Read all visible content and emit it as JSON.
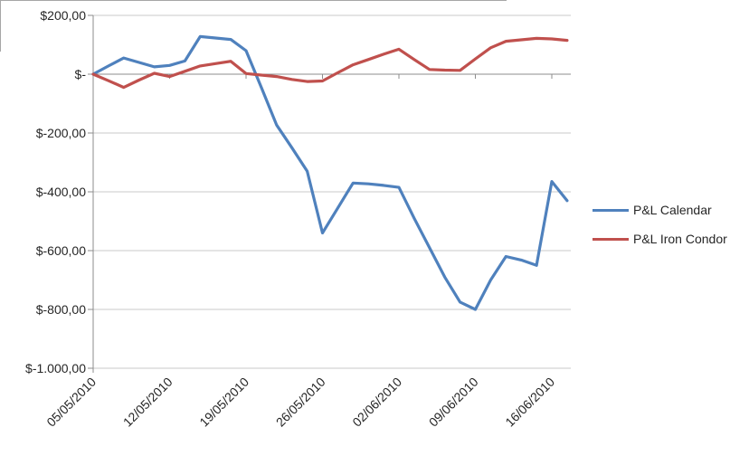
{
  "chart_data": {
    "type": "line",
    "title": "",
    "xlabel": "",
    "ylabel": "",
    "ylim": [
      -1000,
      200
    ],
    "grid": "horizontal-only",
    "legend_position": "right-middle",
    "y_ticks": [
      {
        "value": 200,
        "label": "$200,00"
      },
      {
        "value": 0,
        "label": "$-"
      },
      {
        "value": -200,
        "label": "$-200,00"
      },
      {
        "value": -400,
        "label": "$-400,00"
      },
      {
        "value": -600,
        "label": "$-600,00"
      },
      {
        "value": -800,
        "label": "$-800,00"
      },
      {
        "value": -1000,
        "label": "$-1.000,00"
      }
    ],
    "x_tick_labels": [
      "05/05/2010",
      "12/05/2010",
      "19/05/2010",
      "26/05/2010",
      "02/06/2010",
      "09/06/2010",
      "16/06/2010"
    ],
    "x_tick_indices": [
      0,
      5,
      10,
      15,
      20,
      25,
      30
    ],
    "n_points": 32,
    "x_unit": "trading-day index, weekly labels",
    "series": [
      {
        "name": "P&L Calendar",
        "color": "#4F81BD",
        "values": [
          0,
          28,
          55,
          40,
          25,
          30,
          45,
          128,
          123,
          118,
          80,
          -45,
          -173,
          -250,
          -330,
          -540,
          -455,
          -370,
          -373,
          -378,
          -385,
          -490,
          -590,
          -690,
          -775,
          -800,
          -700,
          -620,
          -632,
          -650,
          -365,
          -430
        ]
      },
      {
        "name": "P&L Iron Condor",
        "color": "#C0504D",
        "values": [
          0,
          -22,
          -45,
          -20,
          3,
          -8,
          10,
          28,
          36,
          44,
          2,
          -3,
          -8,
          -18,
          -25,
          -23,
          5,
          32,
          50,
          68,
          85,
          50,
          16,
          14,
          13,
          52,
          90,
          112,
          117,
          122,
          120,
          115
        ]
      }
    ],
    "colors": {
      "gridline": "#c9c9c9",
      "axis": "#8c8c8c",
      "label_text": "#262626"
    }
  }
}
